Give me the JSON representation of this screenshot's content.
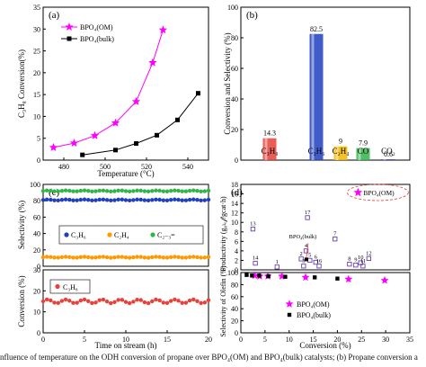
{
  "colors": {
    "magenta": "#ff00ff",
    "black": "#000000",
    "red": "#e8413a",
    "blue": "#1f3fbf",
    "yellow": "#f5b800",
    "green": "#34b34a",
    "purple": "#6a3fb5",
    "orange": "#ff9900"
  },
  "caption": "nfluence of temperature on the ODH conversion of propane over BPO₄(OM) and BPO₄(bulk) catalysts; (b) Propane conversion a",
  "chart_data": [
    {
      "panel": "(a)",
      "type": "line",
      "xlabel": "Temperature (°C)",
      "ylabel": "C₃H₈ Conversion(%)",
      "xlim": [
        470,
        550
      ],
      "ylim": [
        0,
        35
      ],
      "xticks": [
        "480",
        "500",
        "520",
        "540"
      ],
      "yticks": [
        "0",
        "5",
        "10",
        "15",
        "20",
        "25",
        "30",
        "35"
      ],
      "series": [
        {
          "name": "BPO₄(OM)",
          "x": [
            475,
            485,
            495,
            505,
            515,
            523,
            528
          ],
          "values": [
            2.9,
            3.9,
            5.6,
            8.5,
            13.4,
            22.3,
            29.8
          ]
        },
        {
          "name": "BPO₄(bulk)",
          "x": [
            489,
            505,
            515,
            525,
            535,
            545
          ],
          "values": [
            1.2,
            2.3,
            3.8,
            5.7,
            9.2,
            15.3
          ]
        }
      ]
    },
    {
      "panel": "(b)",
      "type": "bar",
      "ylabel": "Conversion and Selectivity (%)",
      "ylim": [
        0,
        100
      ],
      "yticks": [
        "0",
        "20",
        "40",
        "60",
        "80",
        "100"
      ],
      "categories": [
        "C₃H₈",
        "C₃H₆",
        "C₂H₄",
        "CO",
        "CO₂"
      ],
      "values": [
        14.3,
        82.5,
        9,
        7.9,
        0.6
      ],
      "labels": [
        "14.3",
        "82.5",
        "9",
        "7.9",
        "0.6"
      ]
    },
    {
      "panel": "(c)",
      "type": "line",
      "subplots": [
        {
          "ylabel": "Selectivity (%)",
          "ylim": [
            0,
            100
          ],
          "yticks": [
            "0",
            "20",
            "40",
            "60",
            "80",
            "100"
          ],
          "legend": [
            "C₃H₆",
            "C₂H₄",
            "C₂₋₃="
          ],
          "series": [
            {
              "name": "C₃H₆",
              "level": 81
            },
            {
              "name": "C₂H₄",
              "level": 11
            },
            {
              "name": "C₂₋₃=",
              "level": 92
            }
          ]
        },
        {
          "ylabel": "Conversion (%)",
          "ylim": [
            0,
            30
          ],
          "yticks": [
            "0",
            "10",
            "20",
            "30"
          ],
          "legend": [
            "C₃H₈"
          ],
          "series": [
            {
              "name": "C₃H₈",
              "level": 15
            }
          ]
        }
      ],
      "xlabel": "Time on stream (h)",
      "xlim": [
        0,
        20
      ],
      "xticks": [
        "0",
        "5",
        "10",
        "15",
        "20"
      ]
    },
    {
      "panel": "(d)",
      "type": "scatter",
      "xlabel": "Conversion (%)",
      "xlim": [
        0,
        35
      ],
      "xticks": [
        "0",
        "5",
        "10",
        "15",
        "20",
        "25",
        "30",
        "35"
      ],
      "subplots": [
        {
          "ylabel": "Productivity (g₀ₗₑ𝒻/gcat·h)",
          "ylim": [
            0,
            18
          ],
          "yticks": [
            "0",
            "2",
            "4",
            "6",
            "8",
            "10",
            "12",
            "14",
            "16",
            "18"
          ],
          "legend": [
            "BPO₄(OM)"
          ],
          "om_point": {
            "x": 26.5,
            "y": 16.3
          },
          "points": [
            {
              "label": "13",
              "x": 2.5,
              "y": 8.6
            },
            {
              "label": "14",
              "x": 3,
              "y": 1.4
            },
            {
              "label": "1",
              "x": 7.5,
              "y": 0.6
            },
            {
              "label": "17",
              "x": 13.8,
              "y": 11
            },
            {
              "label": "2",
              "x": 12.5,
              "y": 2.3
            },
            {
              "label": "3",
              "x": 13,
              "y": 0.8
            },
            {
              "label": "4",
              "x": 13.5,
              "y": 4
            },
            {
              "label": "5",
              "x": 14.3,
              "y": 2
            },
            {
              "label": "6",
              "x": 15.5,
              "y": 1.6
            },
            {
              "label": "16",
              "x": 16.2,
              "y": 0.8
            },
            {
              "label": "7",
              "x": 19.5,
              "y": 6.5
            },
            {
              "label": "8",
              "x": 22.5,
              "y": 1.2
            },
            {
              "label": "9",
              "x": 23.8,
              "y": 1
            },
            {
              "label": "10",
              "x": 24.8,
              "y": 1.5
            },
            {
              "label": "11",
              "x": 25.3,
              "y": 0.8
            },
            {
              "label": "12",
              "x": 26.5,
              "y": 2.4
            }
          ],
          "annotations": [
            "BPO₄(bulk)"
          ]
        },
        {
          "ylabel": "Selectivity of Olefin (%)",
          "ylim": [
            0,
            100
          ],
          "yticks": [
            "0",
            "20",
            "40",
            "60",
            "80",
            "100"
          ],
          "legend": [
            "BPO₄(OM)",
            "BPO₄(bulk)"
          ],
          "series": [
            {
              "name": "BPO₄(OM)",
              "x": [
                2.9,
                3.9,
                5.6,
                8.5,
                13.4,
                22.3,
                29.8
              ],
              "values": [
                95,
                94,
                94,
                94,
                92,
                89,
                87
              ]
            },
            {
              "name": "BPO₄(bulk)",
              "x": [
                1.2,
                2.3,
                3.8,
                5.7,
                9.2,
                15.3,
                20
              ],
              "values": [
                96,
                95,
                95,
                94,
                93,
                92,
                90
              ]
            }
          ]
        }
      ],
      "extra_ylabel": "Selectivity of Olefin (%)"
    }
  ]
}
